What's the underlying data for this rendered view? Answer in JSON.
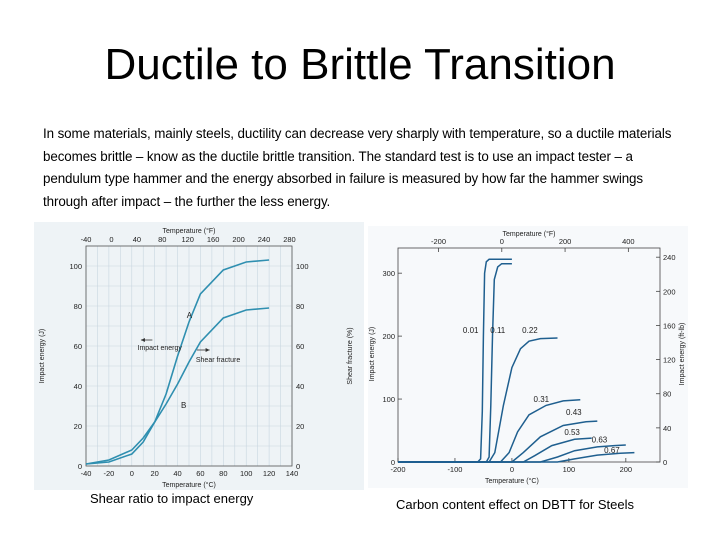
{
  "title": "Ductile to Brittle Transition",
  "body": "In some materials, mainly steels, ductility can decrease very sharply with temperature, so a ductile materials becomes brittle – know as the ductile brittle transition. The standard test is to use an impact tester – a pendulum type hammer and the energy absorbed in failure is measured by how far the hammer swings through after impact – the further the less energy.",
  "captions": {
    "left": "Shear ratio to impact energy",
    "right": "Carbon content effect on DBTT for Steels"
  },
  "chart_data": [
    {
      "type": "line",
      "title": "",
      "xlabel": "Temperature (°C)",
      "x2label": "Temperature (°F)",
      "ylabel": "Impact energy (J)",
      "y2label": "Shear fracture (%)",
      "x_ticks": [
        "-40",
        "-20",
        "0",
        "20",
        "40",
        "60",
        "80",
        "100",
        "120",
        "140"
      ],
      "x2_ticks": [
        "-40",
        "0",
        "40",
        "80",
        "120",
        "160",
        "200",
        "240",
        "280"
      ],
      "y_ticks": [
        "0",
        "20",
        "40",
        "60",
        "80",
        "100"
      ],
      "y2_ticks": [
        "0",
        "20",
        "40",
        "60",
        "80",
        "100"
      ],
      "xlim": [
        -40,
        140
      ],
      "ylim": [
        0,
        110
      ],
      "y2lim": [
        0,
        110
      ],
      "annotations": {
        "impact": "Impact energy",
        "shear": "Shear fracture",
        "a": "A",
        "b": "B"
      },
      "grid": true,
      "series": [
        {
          "name": "A",
          "x": [
            -40,
            -20,
            0,
            10,
            20,
            30,
            40,
            50,
            60,
            80,
            100,
            120
          ],
          "y": [
            1,
            2,
            6,
            12,
            22,
            36,
            55,
            72,
            86,
            98,
            102,
            103
          ]
        },
        {
          "name": "B",
          "x": [
            -40,
            -20,
            0,
            10,
            20,
            30,
            40,
            50,
            60,
            80,
            100,
            120
          ],
          "y": [
            1,
            3,
            8,
            14,
            22,
            31,
            41,
            52,
            62,
            74,
            78,
            79
          ]
        }
      ]
    },
    {
      "type": "line",
      "title": "",
      "xlabel": "Temperature (°C)",
      "x2label": "Temperature (°F)",
      "ylabel": "Impact energy (J)",
      "y2label": "Impact energy (ft-lb)",
      "x_ticks": [
        "-200",
        "-100",
        "0",
        "100",
        "200"
      ],
      "x2_ticks": [
        "-200",
        "0",
        "200",
        "400"
      ],
      "y_ticks": [
        "0",
        "100",
        "200",
        "300"
      ],
      "y2_ticks": [
        "0",
        "40",
        "80",
        "120",
        "160",
        "200",
        "240"
      ],
      "xlim": [
        -200,
        260
      ],
      "ylim": [
        0,
        340
      ],
      "grid": false,
      "series": [
        {
          "name": "0.01",
          "x": [
            -200,
            -60,
            -55,
            -52,
            -50,
            -48,
            -45,
            -40,
            0
          ],
          "y": [
            0,
            0,
            5,
            80,
            200,
            300,
            318,
            322,
            322
          ]
        },
        {
          "name": "0.11",
          "x": [
            -200,
            -45,
            -40,
            -37,
            -34,
            -31,
            -25,
            -18,
            0
          ],
          "y": [
            0,
            0,
            8,
            90,
            200,
            290,
            310,
            315,
            315
          ]
        },
        {
          "name": "0.22",
          "x": [
            -200,
            -40,
            -30,
            -15,
            0,
            15,
            30,
            50,
            80
          ],
          "y": [
            0,
            0,
            15,
            90,
            150,
            180,
            192,
            196,
            197
          ]
        },
        {
          "name": "0.31",
          "x": [
            -200,
            -20,
            -5,
            10,
            30,
            60,
            90,
            120
          ],
          "y": [
            0,
            0,
            15,
            48,
            75,
            90,
            97,
            99
          ]
        },
        {
          "name": "0.43",
          "x": [
            -200,
            0,
            20,
            50,
            90,
            130,
            150
          ],
          "y": [
            0,
            0,
            15,
            40,
            58,
            64,
            65
          ]
        },
        {
          "name": "0.53",
          "x": [
            -200,
            20,
            40,
            70,
            110,
            140
          ],
          "y": [
            0,
            0,
            10,
            26,
            36,
            38
          ]
        },
        {
          "name": "0.63",
          "x": [
            -200,
            50,
            80,
            110,
            150,
            180,
            200
          ],
          "y": [
            0,
            0,
            8,
            18,
            24,
            26,
            27
          ]
        },
        {
          "name": "0.67",
          "x": [
            -200,
            80,
            110,
            150,
            190,
            215
          ],
          "y": [
            0,
            0,
            5,
            11,
            14,
            15
          ]
        }
      ]
    }
  ]
}
